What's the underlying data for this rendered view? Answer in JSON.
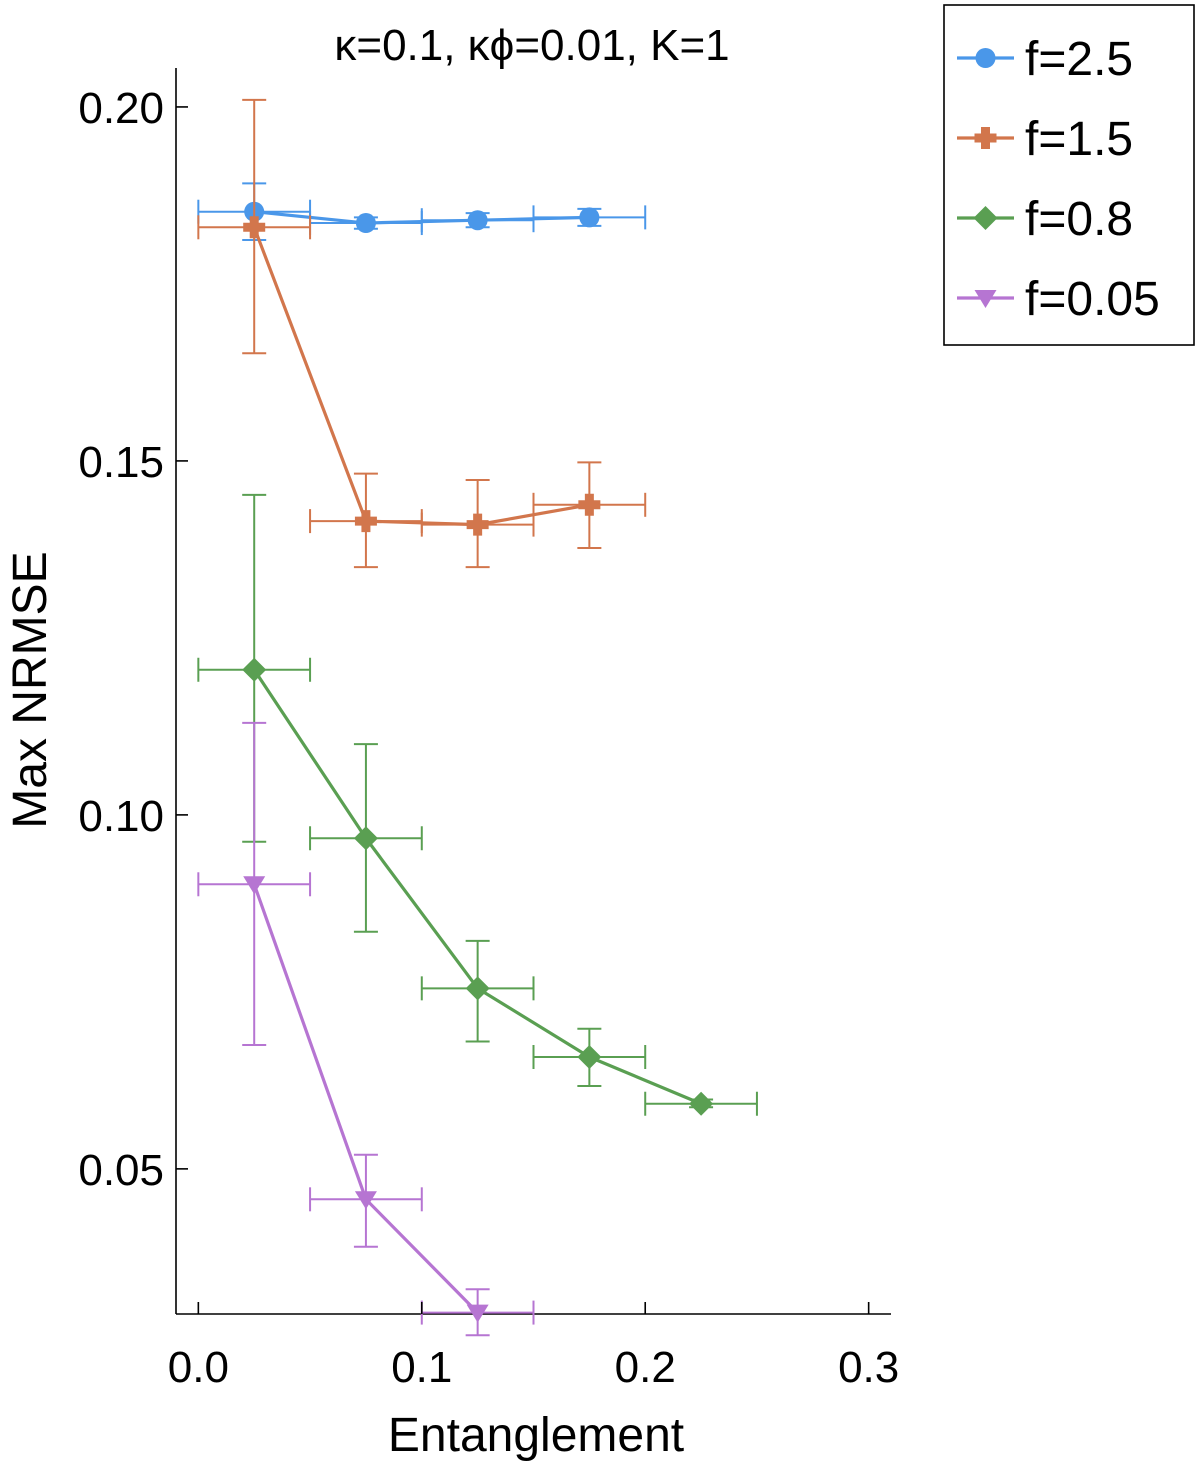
{
  "chart_data": {
    "type": "line",
    "title": "κ=0.1, κϕ=0.01, K=1",
    "xlabel": "Entanglement",
    "ylabel": "Max NRMSE",
    "xlim": [
      -0.01,
      0.31
    ],
    "ylim": [
      0.0295,
      0.2055
    ],
    "xticks": [
      0.0,
      0.1,
      0.2,
      0.3
    ],
    "xtick_labels": [
      "0.0",
      "0.1",
      "0.2",
      "0.3"
    ],
    "yticks": [
      0.05,
      0.1,
      0.15,
      0.2
    ],
    "ytick_labels": [
      "0.05",
      "0.10",
      "0.15",
      "0.20"
    ],
    "grid": false,
    "legend_position": "outside-top-right",
    "series": [
      {
        "name": "f=2.5",
        "color": "#4a97e9",
        "marker": "circle",
        "x": [
          0.025,
          0.075,
          0.125,
          0.175
        ],
        "y": [
          0.1852,
          0.1836,
          0.184,
          0.1844
        ],
        "xerr": [
          0.025,
          0.025,
          0.025,
          0.025
        ],
        "y_low": [
          0.1812,
          0.1828,
          0.183,
          0.1832
        ],
        "y_high": [
          0.1892,
          0.1844,
          0.185,
          0.1856
        ]
      },
      {
        "name": "f=1.5",
        "color": "#d2764c",
        "marker": "cross",
        "x": [
          0.025,
          0.075,
          0.125,
          0.175
        ],
        "y": [
          0.183,
          0.1415,
          0.141,
          0.1438
        ],
        "xerr": [
          0.025,
          0.025,
          0.025,
          0.025
        ],
        "y_low": [
          0.1652,
          0.135,
          0.135,
          0.1377
        ],
        "y_high": [
          0.201,
          0.1482,
          0.1473,
          0.1498
        ]
      },
      {
        "name": "f=0.8",
        "color": "#5a9f52",
        "marker": "diamond",
        "x": [
          0.025,
          0.075,
          0.125,
          0.175,
          0.225
        ],
        "y": [
          0.1205,
          0.0967,
          0.0755,
          0.0658,
          0.0592
        ],
        "xerr": [
          0.025,
          0.025,
          0.025,
          0.025,
          0.025
        ],
        "y_low": [
          0.0962,
          0.0835,
          0.068,
          0.0617,
          0.0587
        ],
        "y_high": [
          0.1452,
          0.11,
          0.0822,
          0.0698,
          0.0598
        ]
      },
      {
        "name": "f=0.05",
        "color": "#b675d2",
        "marker": "triangle-down",
        "x": [
          0.025,
          0.075,
          0.125
        ],
        "y": [
          0.0902,
          0.0457,
          0.0297
        ],
        "xerr": [
          0.025,
          0.025,
          0.025
        ],
        "y_low": [
          0.0675,
          0.039,
          0.0265
        ],
        "y_high": [
          0.113,
          0.052,
          0.033
        ]
      }
    ]
  }
}
